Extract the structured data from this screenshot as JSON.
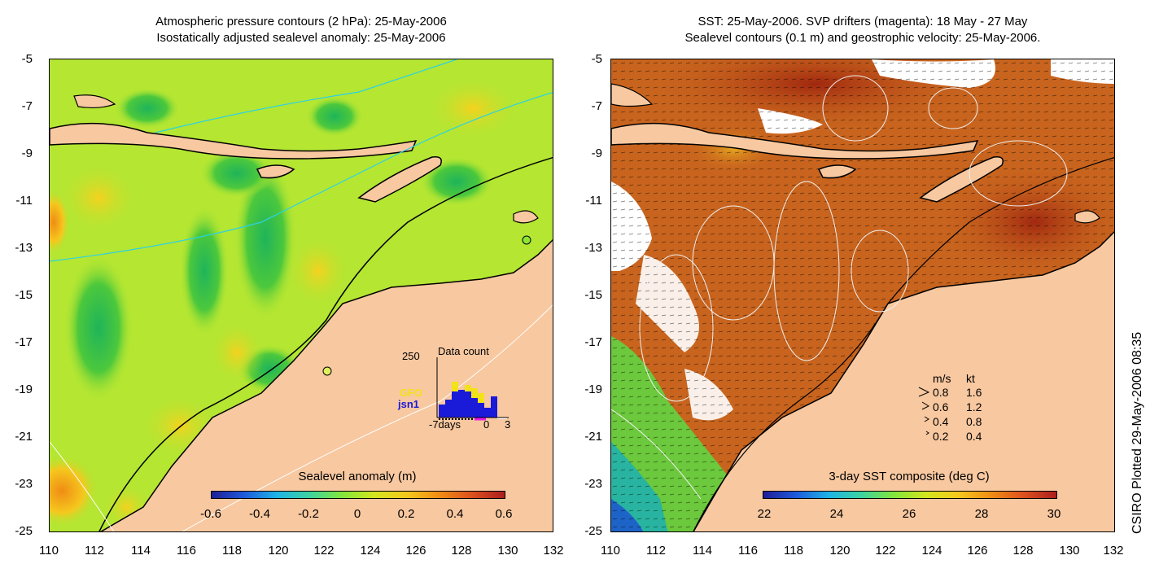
{
  "left": {
    "title_line1": "Atmospheric pressure contours (2 hPa): 25-May-2006",
    "title_line2": "Isostatically adjusted sealevel anomaly: 25-May-2006",
    "colorbar_title": "Sealevel anomaly (m)",
    "colorbar_ticks": [
      "-0.6",
      "-0.4",
      "-0.2",
      "0",
      "0.2",
      "0.4",
      "0.6"
    ],
    "inset": {
      "count_label": "250",
      "title": "Data count",
      "sat1": "GFO",
      "sat2": "jsn1",
      "x_left": "-7days",
      "x_mid": "0",
      "x_right": "3",
      "sat1_color": "#f2e21a",
      "sat2_color": "#1a1ad9"
    }
  },
  "right": {
    "title_line1": "SST: 25-May-2006. SVP drifters (magenta): 18 May - 27 May",
    "title_line2": "Sealevel contours (0.1 m) and geostrophic velocity: 25-May-2006.",
    "colorbar_title": "3-day SST composite (deg C)",
    "colorbar_ticks": [
      "22",
      "24",
      "26",
      "28",
      "30"
    ],
    "velocity_legend": {
      "header_ms": "m/s",
      "header_kt": "kt",
      "rows": [
        {
          "ms": "0.8",
          "kt": "1.6"
        },
        {
          "ms": "0.6",
          "kt": "1.2"
        },
        {
          "ms": "0.4",
          "kt": "0.8"
        },
        {
          "ms": "0.2",
          "kt": "0.4"
        }
      ]
    }
  },
  "y_ticks": [
    "-5",
    "-7",
    "-9",
    "-11",
    "-13",
    "-15",
    "-17",
    "-19",
    "-21",
    "-23",
    "-25"
  ],
  "x_ticks": [
    "110",
    "112",
    "114",
    "116",
    "118",
    "120",
    "122",
    "124",
    "126",
    "128",
    "130",
    "132"
  ],
  "credit": "CSIRO Plotted 29-May-2006 08:35",
  "colors": {
    "land": "#f8c8a0",
    "sla_background": "#b4e632",
    "sst_background": "#c8641e"
  }
}
